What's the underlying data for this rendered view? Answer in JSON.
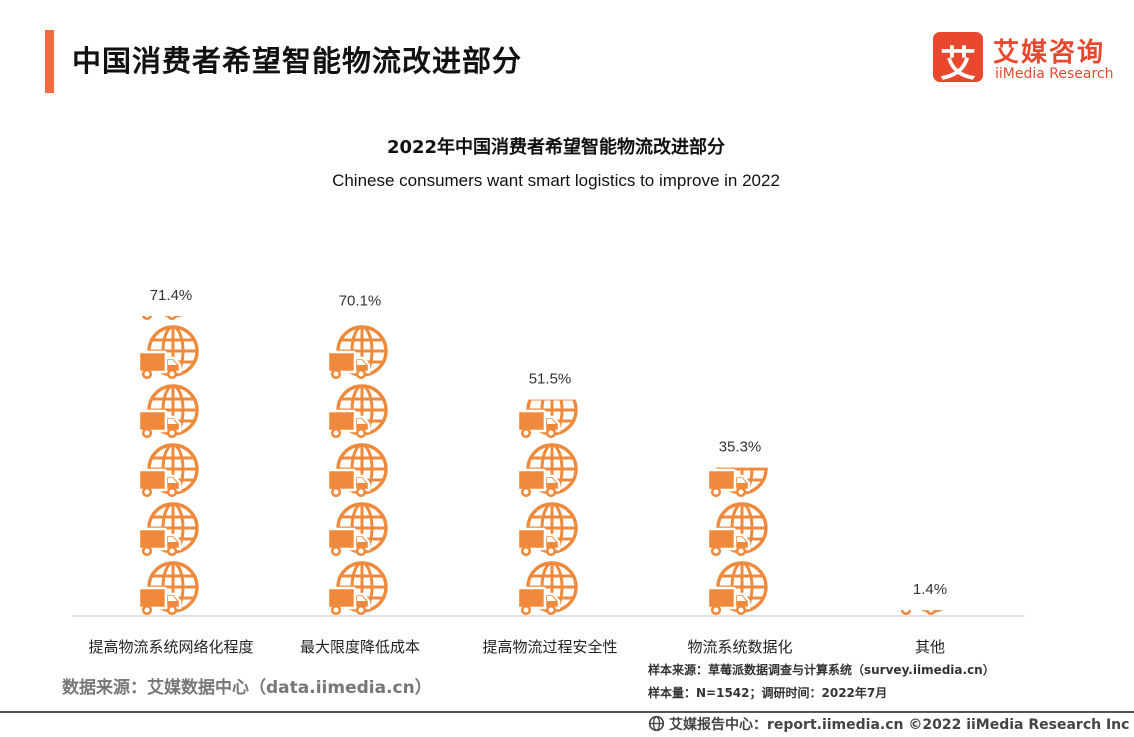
{
  "header": {
    "title": "中国消费者希望智能物流改进部分"
  },
  "logo": {
    "badge_char": "艾",
    "name_cn": "艾媒咨询",
    "name_en": "iiMedia Research"
  },
  "chart_data": {
    "type": "bar",
    "title": "2022年中国消费者希望智能物流改进部分",
    "subtitle": "Chinese consumers want smart logistics to improve in 2022",
    "categories": [
      "提高物流系统网络化程度",
      "最大限度降低成本",
      "提高物流过程安全性",
      "物流系统数据化",
      "其他"
    ],
    "values": [
      71.4,
      70.1,
      51.5,
      35.3,
      1.4
    ],
    "value_labels": [
      "71.4%",
      "70.1%",
      "51.5%",
      "35.3%",
      "1.4%"
    ],
    "unit": "%",
    "ylim": [
      0,
      83.3
    ],
    "pictogram": "truck-and-globe",
    "color": "#ef8a3c",
    "grid": false,
    "legend": "none"
  },
  "footer": {
    "source": "数据来源：艾媒数据中心（data.iimedia.cn）",
    "sample_source": "样本来源：草莓派数据调查与计算系统（survey.iimedia.cn）",
    "sample_size": "样本量：N=1542；调研时间：2022年7月",
    "copyright": "艾媒报告中心：report.iimedia.cn ©2022 iiMedia Research Inc"
  },
  "colors": {
    "accent": "#ef6c3e",
    "brand": "#e8492e",
    "bar": "#ef8a3c"
  }
}
